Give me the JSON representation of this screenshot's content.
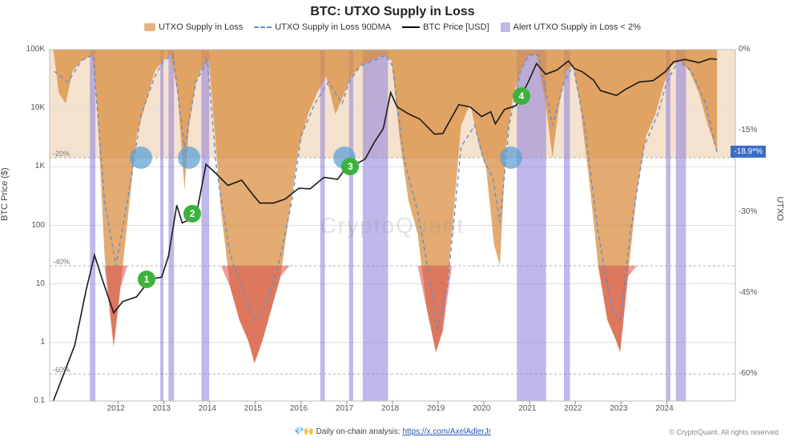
{
  "title": "BTC: UTXO Supply in Loss",
  "legend": {
    "supply_loss": "UTXO Supply in Loss",
    "supply_loss_90dma": "UTXO Supply in Loss 90DMA",
    "btc_price": "BTC Price [USD]",
    "alert": "Alert UTXO Supply in Loss < 2%"
  },
  "watermark": "CryptoQuant",
  "footer": {
    "prefix": "💎🙌 Daily on-chain analysis: ",
    "link_text": "https://x.com/AxelAdlerJr",
    "copyright": "© CryptoQuant. All rights reserved"
  },
  "callout_value": "-18.9*%",
  "ref_lines": {
    "r20": "-20%",
    "r40": "-40%",
    "r60": "-60%"
  },
  "axes": {
    "left_label": "BTC Price ($)",
    "right_label": "UTXO",
    "y_left": {
      "scale": "log",
      "min": 0.1,
      "max": 100000,
      "ticks": [
        "0.1",
        "1",
        "10",
        "100",
        "1K",
        "10K",
        "100K"
      ]
    },
    "y_right": {
      "scale": "linear",
      "min": -65,
      "max": 0,
      "ticks": [
        "0%",
        "-15%",
        "-30%",
        "-45%",
        "-60%"
      ]
    },
    "x": {
      "min": 2010.5,
      "max": 2025.5,
      "ticks": [
        2012,
        2013,
        2014,
        2015,
        2016,
        2017,
        2018,
        2019,
        2020,
        2021,
        2022,
        2023,
        2024
      ]
    }
  },
  "colors": {
    "supply_loss_fill": "#d88a3a",
    "supply_loss_fill_opacity": 0.72,
    "supply_deep_fill": "#d94f4f",
    "supply_deep_opacity": 0.55,
    "dma_line": "#6b8cc4",
    "price_line": "#1a1a1a",
    "alert_band": "#8a7edb",
    "alert_opacity": 0.55,
    "top_band_opacity": 0.25,
    "grid": "#dedede",
    "background": "#ffffff",
    "marker_blue": "#5aa0d7",
    "marker_green": "#3cb23c",
    "callout_bg": "#3b6cc8"
  },
  "styling": {
    "title_fontsize": 16,
    "legend_fontsize": 11,
    "axis_fontsize": 11,
    "tick_fontsize": 10,
    "price_line_width": 1.6,
    "dma_line_width": 1.4,
    "dma_dash": "5,4",
    "marker_blue_diameter": 28,
    "marker_green_diameter": 22
  },
  "btc_price": [
    [
      2010.58,
      0.1
    ],
    [
      2010.8,
      0.28
    ],
    [
      2011.05,
      0.9
    ],
    [
      2011.3,
      8
    ],
    [
      2011.48,
      31
    ],
    [
      2011.65,
      12
    ],
    [
      2011.9,
      3.2
    ],
    [
      2012.1,
      5
    ],
    [
      2012.4,
      6
    ],
    [
      2012.7,
      12
    ],
    [
      2012.95,
      13
    ],
    [
      2013.1,
      30
    ],
    [
      2013.28,
      220
    ],
    [
      2013.4,
      110
    ],
    [
      2013.7,
      140
    ],
    [
      2013.92,
      1100
    ],
    [
      2014.1,
      820
    ],
    [
      2014.4,
      480
    ],
    [
      2014.7,
      590
    ],
    [
      2014.95,
      330
    ],
    [
      2015.1,
      240
    ],
    [
      2015.4,
      240
    ],
    [
      2015.65,
      280
    ],
    [
      2015.95,
      430
    ],
    [
      2016.2,
      420
    ],
    [
      2016.5,
      660
    ],
    [
      2016.8,
      610
    ],
    [
      2016.98,
      960
    ],
    [
      2017.1,
      1000
    ],
    [
      2017.4,
      1350
    ],
    [
      2017.6,
      2600
    ],
    [
      2017.8,
      4500
    ],
    [
      2017.96,
      18500
    ],
    [
      2018.1,
      10500
    ],
    [
      2018.35,
      8000
    ],
    [
      2018.6,
      6500
    ],
    [
      2018.92,
      3600
    ],
    [
      2019.1,
      3700
    ],
    [
      2019.45,
      11500
    ],
    [
      2019.7,
      10500
    ],
    [
      2019.95,
      7200
    ],
    [
      2020.15,
      8700
    ],
    [
      2020.25,
      5400
    ],
    [
      2020.45,
      9500
    ],
    [
      2020.7,
      11000
    ],
    [
      2020.97,
      28000
    ],
    [
      2021.15,
      58000
    ],
    [
      2021.35,
      38000
    ],
    [
      2021.6,
      45000
    ],
    [
      2021.85,
      64000
    ],
    [
      2021.97,
      48000
    ],
    [
      2022.15,
      42000
    ],
    [
      2022.4,
      30000
    ],
    [
      2022.55,
      20000
    ],
    [
      2022.9,
      16500
    ],
    [
      2023.1,
      21000
    ],
    [
      2023.4,
      28000
    ],
    [
      2023.7,
      29500
    ],
    [
      2023.97,
      42000
    ],
    [
      2024.15,
      62000
    ],
    [
      2024.4,
      68000
    ],
    [
      2024.7,
      60000
    ],
    [
      2024.95,
      70000
    ],
    [
      2025.1,
      68000
    ]
  ],
  "dma_90": [
    [
      2010.6,
      -4
    ],
    [
      2010.9,
      -6
    ],
    [
      2011.2,
      -2
    ],
    [
      2011.45,
      -1
    ],
    [
      2011.7,
      -28
    ],
    [
      2011.95,
      -40
    ],
    [
      2012.2,
      -28
    ],
    [
      2012.5,
      -12
    ],
    [
      2012.8,
      -5
    ],
    [
      2013.0,
      -2
    ],
    [
      2013.2,
      -1
    ],
    [
      2013.45,
      -18
    ],
    [
      2013.7,
      -6
    ],
    [
      2013.95,
      -2
    ],
    [
      2014.15,
      -22
    ],
    [
      2014.45,
      -38
    ],
    [
      2014.75,
      -45
    ],
    [
      2014.98,
      -50
    ],
    [
      2015.2,
      -48
    ],
    [
      2015.5,
      -40
    ],
    [
      2015.8,
      -28
    ],
    [
      2016.0,
      -16
    ],
    [
      2016.3,
      -10
    ],
    [
      2016.6,
      -6
    ],
    [
      2016.9,
      -10
    ],
    [
      2017.05,
      -6
    ],
    [
      2017.3,
      -3
    ],
    [
      2017.6,
      -2
    ],
    [
      2017.85,
      -1
    ],
    [
      2018.0,
      -3
    ],
    [
      2018.25,
      -20
    ],
    [
      2018.55,
      -30
    ],
    [
      2018.85,
      -44
    ],
    [
      2018.98,
      -52
    ],
    [
      2019.2,
      -44
    ],
    [
      2019.5,
      -18
    ],
    [
      2019.8,
      -14
    ],
    [
      2019.98,
      -20
    ],
    [
      2020.2,
      -24
    ],
    [
      2020.35,
      -32
    ],
    [
      2020.55,
      -14
    ],
    [
      2020.8,
      -4
    ],
    [
      2020.98,
      -1
    ],
    [
      2021.2,
      -1
    ],
    [
      2021.5,
      -14
    ],
    [
      2021.75,
      -6
    ],
    [
      2021.95,
      -3
    ],
    [
      2022.2,
      -14
    ],
    [
      2022.5,
      -34
    ],
    [
      2022.8,
      -48
    ],
    [
      2022.98,
      -50
    ],
    [
      2023.2,
      -34
    ],
    [
      2023.5,
      -18
    ],
    [
      2023.8,
      -12
    ],
    [
      2024.0,
      -6
    ],
    [
      2024.25,
      -2
    ],
    [
      2024.55,
      -4
    ],
    [
      2024.85,
      -10
    ],
    [
      2025.1,
      -19
    ]
  ],
  "supply_loss_shape": [
    [
      2010.58,
      0
    ],
    [
      2010.7,
      -8
    ],
    [
      2010.85,
      -10
    ],
    [
      2011.0,
      -4
    ],
    [
      2011.2,
      -2
    ],
    [
      2011.45,
      -1
    ],
    [
      2011.55,
      -12
    ],
    [
      2011.7,
      -38
    ],
    [
      2011.9,
      -55
    ],
    [
      2012.05,
      -44
    ],
    [
      2012.2,
      -32
    ],
    [
      2012.4,
      -16
    ],
    [
      2012.6,
      -10
    ],
    [
      2012.8,
      -4
    ],
    [
      2012.98,
      -2
    ],
    [
      2013.15,
      -1
    ],
    [
      2013.3,
      -8
    ],
    [
      2013.45,
      -26
    ],
    [
      2013.55,
      -14
    ],
    [
      2013.7,
      -6
    ],
    [
      2013.85,
      -3
    ],
    [
      2013.98,
      -2
    ],
    [
      2014.1,
      -14
    ],
    [
      2014.25,
      -30
    ],
    [
      2014.45,
      -44
    ],
    [
      2014.65,
      -50
    ],
    [
      2014.85,
      -54
    ],
    [
      2014.98,
      -58
    ],
    [
      2015.15,
      -54
    ],
    [
      2015.35,
      -48
    ],
    [
      2015.55,
      -42
    ],
    [
      2015.75,
      -30
    ],
    [
      2015.95,
      -18
    ],
    [
      2016.15,
      -12
    ],
    [
      2016.35,
      -8
    ],
    [
      2016.55,
      -5
    ],
    [
      2016.75,
      -12
    ],
    [
      2016.95,
      -8
    ],
    [
      2017.1,
      -5
    ],
    [
      2017.3,
      -3
    ],
    [
      2017.55,
      -2
    ],
    [
      2017.8,
      -1
    ],
    [
      2017.98,
      -2
    ],
    [
      2018.15,
      -16
    ],
    [
      2018.35,
      -28
    ],
    [
      2018.55,
      -34
    ],
    [
      2018.75,
      -48
    ],
    [
      2018.95,
      -56
    ],
    [
      2019.1,
      -52
    ],
    [
      2019.3,
      -34
    ],
    [
      2019.5,
      -14
    ],
    [
      2019.7,
      -10
    ],
    [
      2019.9,
      -18
    ],
    [
      2020.05,
      -22
    ],
    [
      2020.22,
      -36
    ],
    [
      2020.35,
      -40
    ],
    [
      2020.48,
      -18
    ],
    [
      2020.65,
      -8
    ],
    [
      2020.85,
      -3
    ],
    [
      2020.98,
      -1
    ],
    [
      2021.15,
      -1
    ],
    [
      2021.35,
      -10
    ],
    [
      2021.5,
      -20
    ],
    [
      2021.65,
      -10
    ],
    [
      2021.8,
      -4
    ],
    [
      2021.95,
      -3
    ],
    [
      2022.1,
      -10
    ],
    [
      2022.3,
      -24
    ],
    [
      2022.5,
      -40
    ],
    [
      2022.7,
      -50
    ],
    [
      2022.9,
      -54
    ],
    [
      2022.98,
      -56
    ],
    [
      2023.15,
      -42
    ],
    [
      2023.35,
      -26
    ],
    [
      2023.55,
      -16
    ],
    [
      2023.75,
      -12
    ],
    [
      2023.95,
      -6
    ],
    [
      2024.1,
      -3
    ],
    [
      2024.3,
      -2
    ],
    [
      2024.5,
      -4
    ],
    [
      2024.7,
      -8
    ],
    [
      2024.9,
      -14
    ],
    [
      2025.1,
      -19
    ]
  ],
  "alert_bands": [
    [
      2011.38,
      2011.5
    ],
    [
      2012.92,
      2012.99
    ],
    [
      2013.1,
      2013.22
    ],
    [
      2013.82,
      2013.99
    ],
    [
      2016.42,
      2016.52
    ],
    [
      2017.05,
      2017.14
    ],
    [
      2017.35,
      2017.9
    ],
    [
      2020.72,
      2021.36
    ],
    [
      2021.75,
      2021.88
    ],
    [
      2023.98,
      2024.08
    ],
    [
      2024.2,
      2024.42
    ]
  ],
  "blue_markers": [
    {
      "x": 2012.5,
      "utxo": -20
    },
    {
      "x": 2013.55,
      "utxo": -20
    },
    {
      "x": 2016.95,
      "utxo": -20
    },
    {
      "x": 2020.6,
      "utxo": -20
    }
  ],
  "green_markers": [
    {
      "label": "1",
      "x": 2012.62,
      "price": 12
    },
    {
      "label": "2",
      "x": 2013.62,
      "price": 160
    },
    {
      "label": "3",
      "x": 2017.08,
      "price": 1000
    },
    {
      "label": "4",
      "x": 2020.82,
      "price": 16000
    }
  ]
}
